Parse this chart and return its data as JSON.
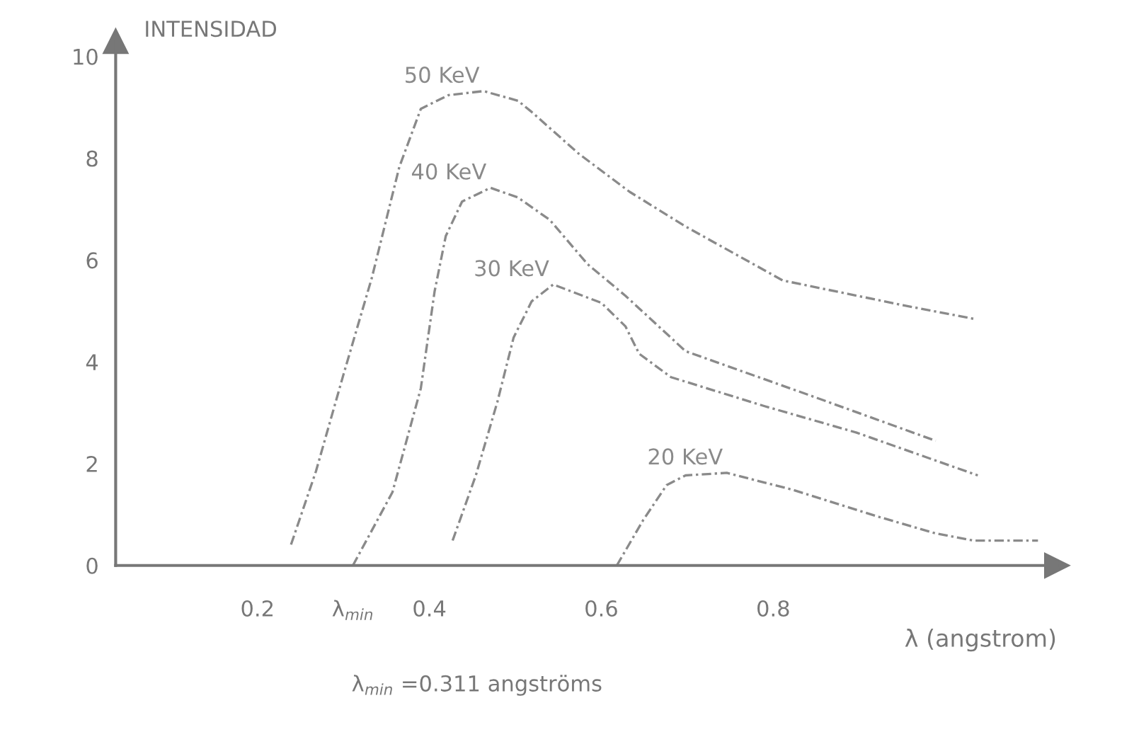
{
  "chart_data": {
    "type": "line",
    "ylabel": "INTENSIDAD",
    "xlabel": "λ (angstrom)",
    "xlim": [
      0.035,
      1.13
    ],
    "ylim": [
      0,
      10.3
    ],
    "xticks": [
      0.2,
      {
        "value": 0.311,
        "label": "λ$_{min}$"
      },
      0.4,
      0.6,
      0.8
    ],
    "yticks": [
      0,
      2,
      4,
      6,
      8,
      10
    ],
    "grid": false,
    "legend": false,
    "marker": "none",
    "line_style": "dashed",
    "annotations": [
      "λ$_{min}$ =0.311 angströms"
    ],
    "series": [
      {
        "name": "50 KeV",
        "color": "#8a8a8a",
        "x": [
          0.239,
          0.268,
          0.3,
          0.333,
          0.365,
          0.39,
          0.422,
          0.463,
          0.503,
          0.519,
          0.573,
          0.633,
          0.698,
          0.811,
          0.952,
          1.035
        ],
        "values": [
          0.41,
          1.85,
          3.75,
          5.65,
          7.83,
          8.97,
          9.24,
          9.32,
          9.13,
          8.91,
          8.1,
          7.34,
          6.66,
          5.6,
          5.11,
          4.84
        ]
      },
      {
        "name": "40 KeV",
        "color": "#8a8a8a",
        "x": [
          0.311,
          0.357,
          0.39,
          0.406,
          0.419,
          0.438,
          0.471,
          0.503,
          0.54,
          0.584,
          0.628,
          0.698,
          0.843,
          0.989
        ],
        "values": [
          0,
          1.44,
          3.48,
          5.38,
          6.47,
          7.15,
          7.42,
          7.23,
          6.79,
          5.92,
          5.3,
          4.21,
          3.34,
          2.45
        ]
      },
      {
        "name": "30 KeV",
        "color": "#8a8a8a",
        "x": [
          0.427,
          0.454,
          0.479,
          0.498,
          0.519,
          0.544,
          0.6,
          0.628,
          0.644,
          0.681,
          0.79,
          0.897,
          1.038
        ],
        "values": [
          0.49,
          1.77,
          3.21,
          4.48,
          5.19,
          5.52,
          5.16,
          4.7,
          4.16,
          3.7,
          3.13,
          2.61,
          1.77
        ]
      },
      {
        "name": "20 KeV",
        "color": "#8a8a8a",
        "x": [
          0.618,
          0.649,
          0.676,
          0.698,
          0.746,
          0.822,
          0.924,
          0.989,
          1.033,
          1.108
        ],
        "values": [
          0,
          0.9,
          1.58,
          1.77,
          1.82,
          1.49,
          0.95,
          0.63,
          0.49,
          0.49
        ]
      }
    ]
  }
}
